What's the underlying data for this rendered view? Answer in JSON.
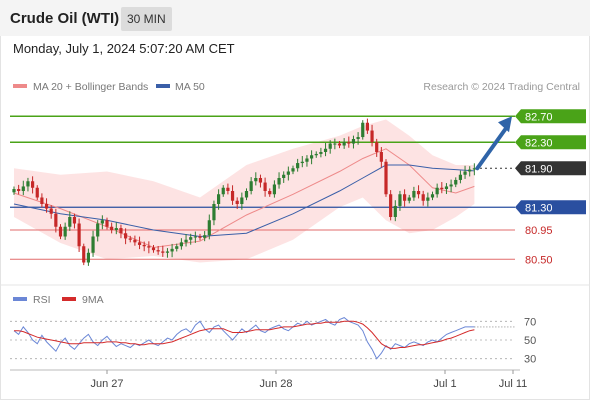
{
  "header": {
    "title": "Crude Oil (WTI)",
    "timeframe": "30 MIN"
  },
  "datetime": "Monday, July 1, 2024 5:07:20 AM CET",
  "legend": {
    "ma20": "MA 20 + Bollinger Bands",
    "ma50": "MA 50",
    "copyright": "Research © 2024 Trading Central",
    "rsi": "RSI",
    "ma9": "9MA"
  },
  "colors": {
    "up_candle": "#2e7d32",
    "down_candle": "#c62828",
    "bollinger_fill": "#fde0e0",
    "ma20": "#ee8a8a",
    "ma50": "#3a5fa8",
    "resistance": "#4aa318",
    "support_blue": "#2a4fa0",
    "support_red": "#e26b6b",
    "current": "#333333",
    "arrow": "#2f64a8",
    "rsi": "#6b87d6",
    "rsi_ma": "#d42b2b"
  },
  "chart_data": [
    {
      "type": "candlestick",
      "name": "price",
      "ylim": [
        80.15,
        82.95
      ],
      "x_labels": [
        "Jun 27",
        "Jun 28",
        "Jul 1",
        "Jul 11"
      ],
      "levels": [
        {
          "label": "82.70",
          "value": 82.7,
          "kind": "resistance"
        },
        {
          "label": "82.30",
          "value": 82.3,
          "kind": "resistance"
        },
        {
          "label": "81.90",
          "value": 81.9,
          "kind": "current"
        },
        {
          "label": "81.30",
          "value": 81.3,
          "kind": "support"
        },
        {
          "label": "80.95",
          "value": 80.95,
          "kind": "support"
        },
        {
          "label": "80.50",
          "value": 80.5,
          "kind": "support"
        }
      ],
      "closes": [
        81.58,
        81.55,
        81.62,
        81.7,
        81.6,
        81.45,
        81.35,
        81.28,
        81.2,
        81.0,
        80.85,
        81.0,
        81.15,
        81.05,
        80.7,
        80.45,
        80.6,
        80.85,
        81.05,
        81.1,
        81.0,
        80.95,
        80.98,
        80.9,
        80.82,
        80.8,
        80.76,
        80.72,
        80.7,
        80.68,
        80.64,
        80.62,
        80.6,
        80.62,
        80.66,
        80.7,
        80.76,
        80.8,
        80.84,
        80.85,
        80.83,
        80.87,
        81.1,
        81.35,
        81.5,
        81.6,
        81.55,
        81.4,
        81.35,
        81.45,
        81.55,
        81.7,
        81.75,
        81.68,
        81.55,
        81.5,
        81.65,
        81.75,
        81.8,
        81.85,
        81.9,
        81.98,
        82.0,
        82.05,
        82.1,
        82.12,
        82.15,
        82.2,
        82.28,
        82.28,
        82.25,
        82.3,
        82.28,
        82.35,
        82.38,
        82.6,
        82.48,
        82.3,
        82.15,
        82.0,
        81.5,
        81.15,
        81.32,
        81.5,
        81.4,
        81.45,
        81.55,
        81.5,
        81.4,
        81.45,
        81.5,
        81.6,
        81.58,
        81.62,
        81.65,
        81.72,
        81.8,
        81.85,
        81.88,
        81.9
      ],
      "bollinger": {
        "x_idx": [
          0,
          10,
          20,
          30,
          40,
          50,
          60,
          70,
          75,
          80,
          85,
          90,
          95,
          99
        ],
        "upper": [
          81.9,
          81.8,
          81.85,
          81.7,
          81.45,
          81.95,
          82.2,
          82.4,
          82.55,
          82.65,
          82.4,
          82.1,
          81.95,
          81.95
        ],
        "lower": [
          81.15,
          80.75,
          80.5,
          80.55,
          80.45,
          80.5,
          80.8,
          81.3,
          81.45,
          81.1,
          80.9,
          80.95,
          81.15,
          81.35
        ]
      },
      "ma20": {
        "x_idx": [
          0,
          10,
          20,
          30,
          40,
          50,
          60,
          70,
          75,
          80,
          85,
          90,
          95,
          99
        ],
        "values": [
          81.52,
          81.28,
          81.0,
          80.68,
          80.78,
          81.18,
          81.5,
          81.85,
          82.05,
          82.2,
          81.95,
          81.6,
          81.52,
          81.62
        ]
      },
      "ma50": {
        "x_idx": [
          0,
          10,
          20,
          30,
          40,
          50,
          60,
          70,
          75,
          80,
          85,
          90,
          95,
          99
        ],
        "values": [
          81.35,
          81.2,
          81.1,
          80.95,
          80.85,
          80.9,
          81.2,
          81.55,
          81.75,
          81.95,
          81.95,
          81.9,
          81.88,
          81.86
        ]
      }
    },
    {
      "type": "line",
      "name": "RSI",
      "ylim": [
        20,
        80
      ],
      "y_ticks": [
        70,
        50,
        30
      ],
      "rsi": [
        60,
        56,
        64,
        58,
        50,
        46,
        55,
        48,
        43,
        38,
        47,
        52,
        44,
        40,
        46,
        52,
        56,
        48,
        44,
        50,
        54,
        48,
        43,
        46,
        44,
        42,
        46,
        44,
        47,
        50,
        46,
        44,
        48,
        52,
        50,
        56,
        60,
        62,
        58,
        66,
        70,
        62,
        58,
        64,
        66,
        60,
        55,
        50,
        56,
        62,
        58,
        62,
        66,
        60,
        58,
        62,
        64,
        66,
        62,
        60,
        64,
        68,
        66,
        70,
        66,
        68,
        70,
        72,
        68,
        66,
        72,
        74,
        70,
        68,
        66,
        60,
        48,
        40,
        30,
        36,
        44,
        40,
        46,
        44,
        42,
        46,
        48,
        46,
        44,
        48,
        50,
        48,
        52,
        56,
        58,
        60,
        62,
        64,
        64,
        64
      ],
      "ma": [
        60,
        60,
        59,
        57,
        55,
        53,
        52,
        51,
        50,
        49,
        48,
        47,
        46,
        46,
        46,
        47,
        47,
        47,
        47,
        47,
        48,
        48,
        48,
        47,
        47,
        46,
        46,
        45,
        45,
        46,
        46,
        46,
        46,
        47,
        48,
        50,
        52,
        54,
        56,
        58,
        60,
        61,
        62,
        62,
        62,
        62,
        60,
        58,
        58,
        58,
        59,
        60,
        61,
        61,
        61,
        61,
        62,
        63,
        64,
        64,
        64,
        65,
        66,
        67,
        67,
        68,
        68,
        69,
        69,
        69,
        69,
        70,
        70,
        70,
        69,
        67,
        63,
        58,
        52,
        46,
        43,
        41,
        41,
        42,
        42,
        43,
        44,
        45,
        45,
        46,
        47,
        48,
        49,
        51,
        52,
        54,
        56,
        58,
        60,
        61
      ]
    }
  ]
}
